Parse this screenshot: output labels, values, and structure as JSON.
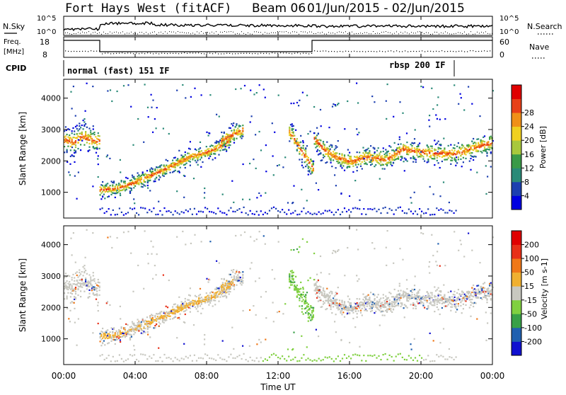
{
  "header": {
    "station": "Fort Hays West (fitACF)",
    "beam": "Beam 06",
    "date_range": "01/Jun/2015 - 02/Jun/2015"
  },
  "top_panels": {
    "left_labels": {
      "nsky": "N.Sky",
      "freq": "Freq.",
      "freq_unit": "[MHz]",
      "cpid": "CPID"
    },
    "right_labels": {
      "nsearch": "N.Search",
      "nave": "Nave"
    },
    "nsky_ticks": [
      "10^5",
      "10^0"
    ],
    "nsearch_ticks": [
      "10^5",
      "10^0"
    ],
    "freq_ticks": [
      "18",
      "8"
    ],
    "nave_ticks": [
      "60",
      "0"
    ],
    "cpid_modes": [
      {
        "label": "normal (fast) 151 IF",
        "start_h": 0,
        "end_h": 21.8
      },
      {
        "label": "rbsp 200 IF",
        "start_h": 21.8,
        "end_h": 24
      }
    ]
  },
  "chart_data": [
    {
      "type": "heatmap",
      "panel": "power",
      "ylabel": "Slant Range [km]",
      "xlabel": "Time UT",
      "xlim": [
        0,
        24
      ],
      "ylim": [
        180,
        4600
      ],
      "x_ticks": [
        "00:00",
        "04:00",
        "08:00",
        "12:00",
        "16:00",
        "20:00",
        "00:00"
      ],
      "y_ticks": [
        1000,
        2000,
        3000,
        4000
      ],
      "colorbar": {
        "label": "Power [dB]",
        "ticks": [
          "4",
          "8",
          "12",
          "16",
          "20",
          "24",
          "28"
        ],
        "colors": [
          "#0000e0",
          "#1c3fb0",
          "#2a8a78",
          "#3a9a48",
          "#a8c83c",
          "#f0d020",
          "#f09018",
          "#e84018",
          "#e00000"
        ]
      },
      "bands": [
        {
          "t": [
            0,
            0.5,
            1,
            1.5,
            2
          ],
          "r": [
            2700,
            2600,
            2800,
            2700,
            2650
          ],
          "width": 350
        },
        {
          "t": [
            2,
            3,
            4,
            5,
            6,
            7,
            8,
            9,
            9.3
          ],
          "r": [
            1100,
            1150,
            1350,
            1600,
            1850,
            2150,
            2300,
            2550,
            2700
          ],
          "width": 200
        },
        {
          "t": [
            8.8,
            9.2,
            9.6,
            10
          ],
          "r": [
            2650,
            2800,
            2900,
            3000
          ],
          "width": 250
        },
        {
          "t": [
            12.6,
            13,
            13.4,
            13.8,
            14
          ],
          "r": [
            2950,
            2600,
            2250,
            1900,
            1650
          ],
          "width": 300
        },
        {
          "t": [
            14,
            14.5,
            15,
            16,
            17,
            18,
            19,
            20,
            21,
            22,
            23,
            24
          ],
          "r": [
            2750,
            2400,
            2200,
            2000,
            2150,
            2050,
            2400,
            2300,
            2250,
            2250,
            2450,
            2600
          ],
          "width": 280
        }
      ]
    },
    {
      "type": "heatmap",
      "panel": "velocity",
      "ylabel": "Slant Range [km]",
      "xlabel": "Time UT",
      "xlim": [
        0,
        24
      ],
      "ylim": [
        180,
        4600
      ],
      "x_ticks": [
        "00:00",
        "04:00",
        "08:00",
        "12:00",
        "16:00",
        "20:00",
        "00:00"
      ],
      "y_ticks": [
        1000,
        2000,
        3000,
        4000
      ],
      "colorbar": {
        "label": "Velocity [m s-1]",
        "ticks": [
          "200",
          "100",
          "50",
          "15",
          "-15",
          "-50",
          "-100",
          "-200"
        ],
        "colors": [
          "#1010d0",
          "#2060b0",
          "#38a048",
          "#80d040",
          "#c8c8c0",
          "#f0b030",
          "#f07818",
          "#e83018",
          "#e00000"
        ]
      }
    }
  ]
}
